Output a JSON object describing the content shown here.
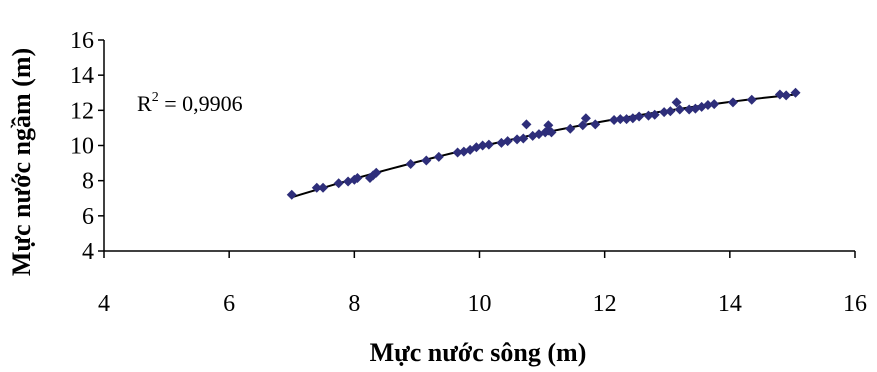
{
  "chart_data": {
    "type": "scatter",
    "title": "",
    "xlabel": "Mực nước sông (m)",
    "ylabel": "Mực nước ngầm (m)",
    "xlim": [
      4,
      16
    ],
    "ylim": [
      4,
      16
    ],
    "x_ticks": [
      "4",
      "6",
      "8",
      "10",
      "12",
      "14",
      "16"
    ],
    "y_ticks": [
      "4",
      "6",
      "8",
      "10",
      "12",
      "14",
      "16"
    ],
    "grid": false,
    "legend": "none",
    "marker_color": "#2e2e7a",
    "trendline": {
      "type": "polynomial",
      "color": "#000000",
      "r2_base": "R",
      "r2_exp": "2",
      "r2_value": " = 0,9906"
    },
    "series": [
      {
        "points": [
          [
            7.0,
            7.2
          ],
          [
            7.4,
            7.6
          ],
          [
            7.5,
            7.6
          ],
          [
            7.75,
            7.85
          ],
          [
            7.9,
            7.95
          ],
          [
            8.0,
            8.05
          ],
          [
            8.05,
            8.15
          ],
          [
            8.25,
            8.15
          ],
          [
            8.3,
            8.3
          ],
          [
            8.35,
            8.45
          ],
          [
            8.9,
            8.95
          ],
          [
            9.15,
            9.15
          ],
          [
            9.35,
            9.35
          ],
          [
            9.65,
            9.6
          ],
          [
            9.75,
            9.65
          ],
          [
            9.85,
            9.75
          ],
          [
            9.95,
            9.9
          ],
          [
            10.05,
            10.0
          ],
          [
            10.15,
            10.05
          ],
          [
            10.35,
            10.15
          ],
          [
            10.45,
            10.25
          ],
          [
            10.6,
            10.35
          ],
          [
            10.7,
            10.4
          ],
          [
            10.75,
            11.2
          ],
          [
            10.85,
            10.55
          ],
          [
            10.95,
            10.65
          ],
          [
            11.05,
            10.75
          ],
          [
            11.1,
            10.85
          ],
          [
            11.1,
            11.15
          ],
          [
            11.15,
            10.75
          ],
          [
            11.45,
            10.95
          ],
          [
            11.65,
            11.15
          ],
          [
            11.7,
            11.55
          ],
          [
            11.85,
            11.2
          ],
          [
            12.15,
            11.45
          ],
          [
            12.25,
            11.5
          ],
          [
            12.35,
            11.5
          ],
          [
            12.45,
            11.55
          ],
          [
            12.55,
            11.65
          ],
          [
            12.7,
            11.7
          ],
          [
            12.8,
            11.75
          ],
          [
            12.95,
            11.9
          ],
          [
            13.05,
            11.95
          ],
          [
            13.15,
            12.45
          ],
          [
            13.2,
            12.05
          ],
          [
            13.35,
            12.05
          ],
          [
            13.45,
            12.1
          ],
          [
            13.55,
            12.2
          ],
          [
            13.65,
            12.3
          ],
          [
            13.75,
            12.35
          ],
          [
            14.05,
            12.45
          ],
          [
            14.35,
            12.6
          ],
          [
            14.8,
            12.9
          ],
          [
            14.9,
            12.85
          ],
          [
            15.05,
            13.0
          ]
        ]
      }
    ]
  }
}
